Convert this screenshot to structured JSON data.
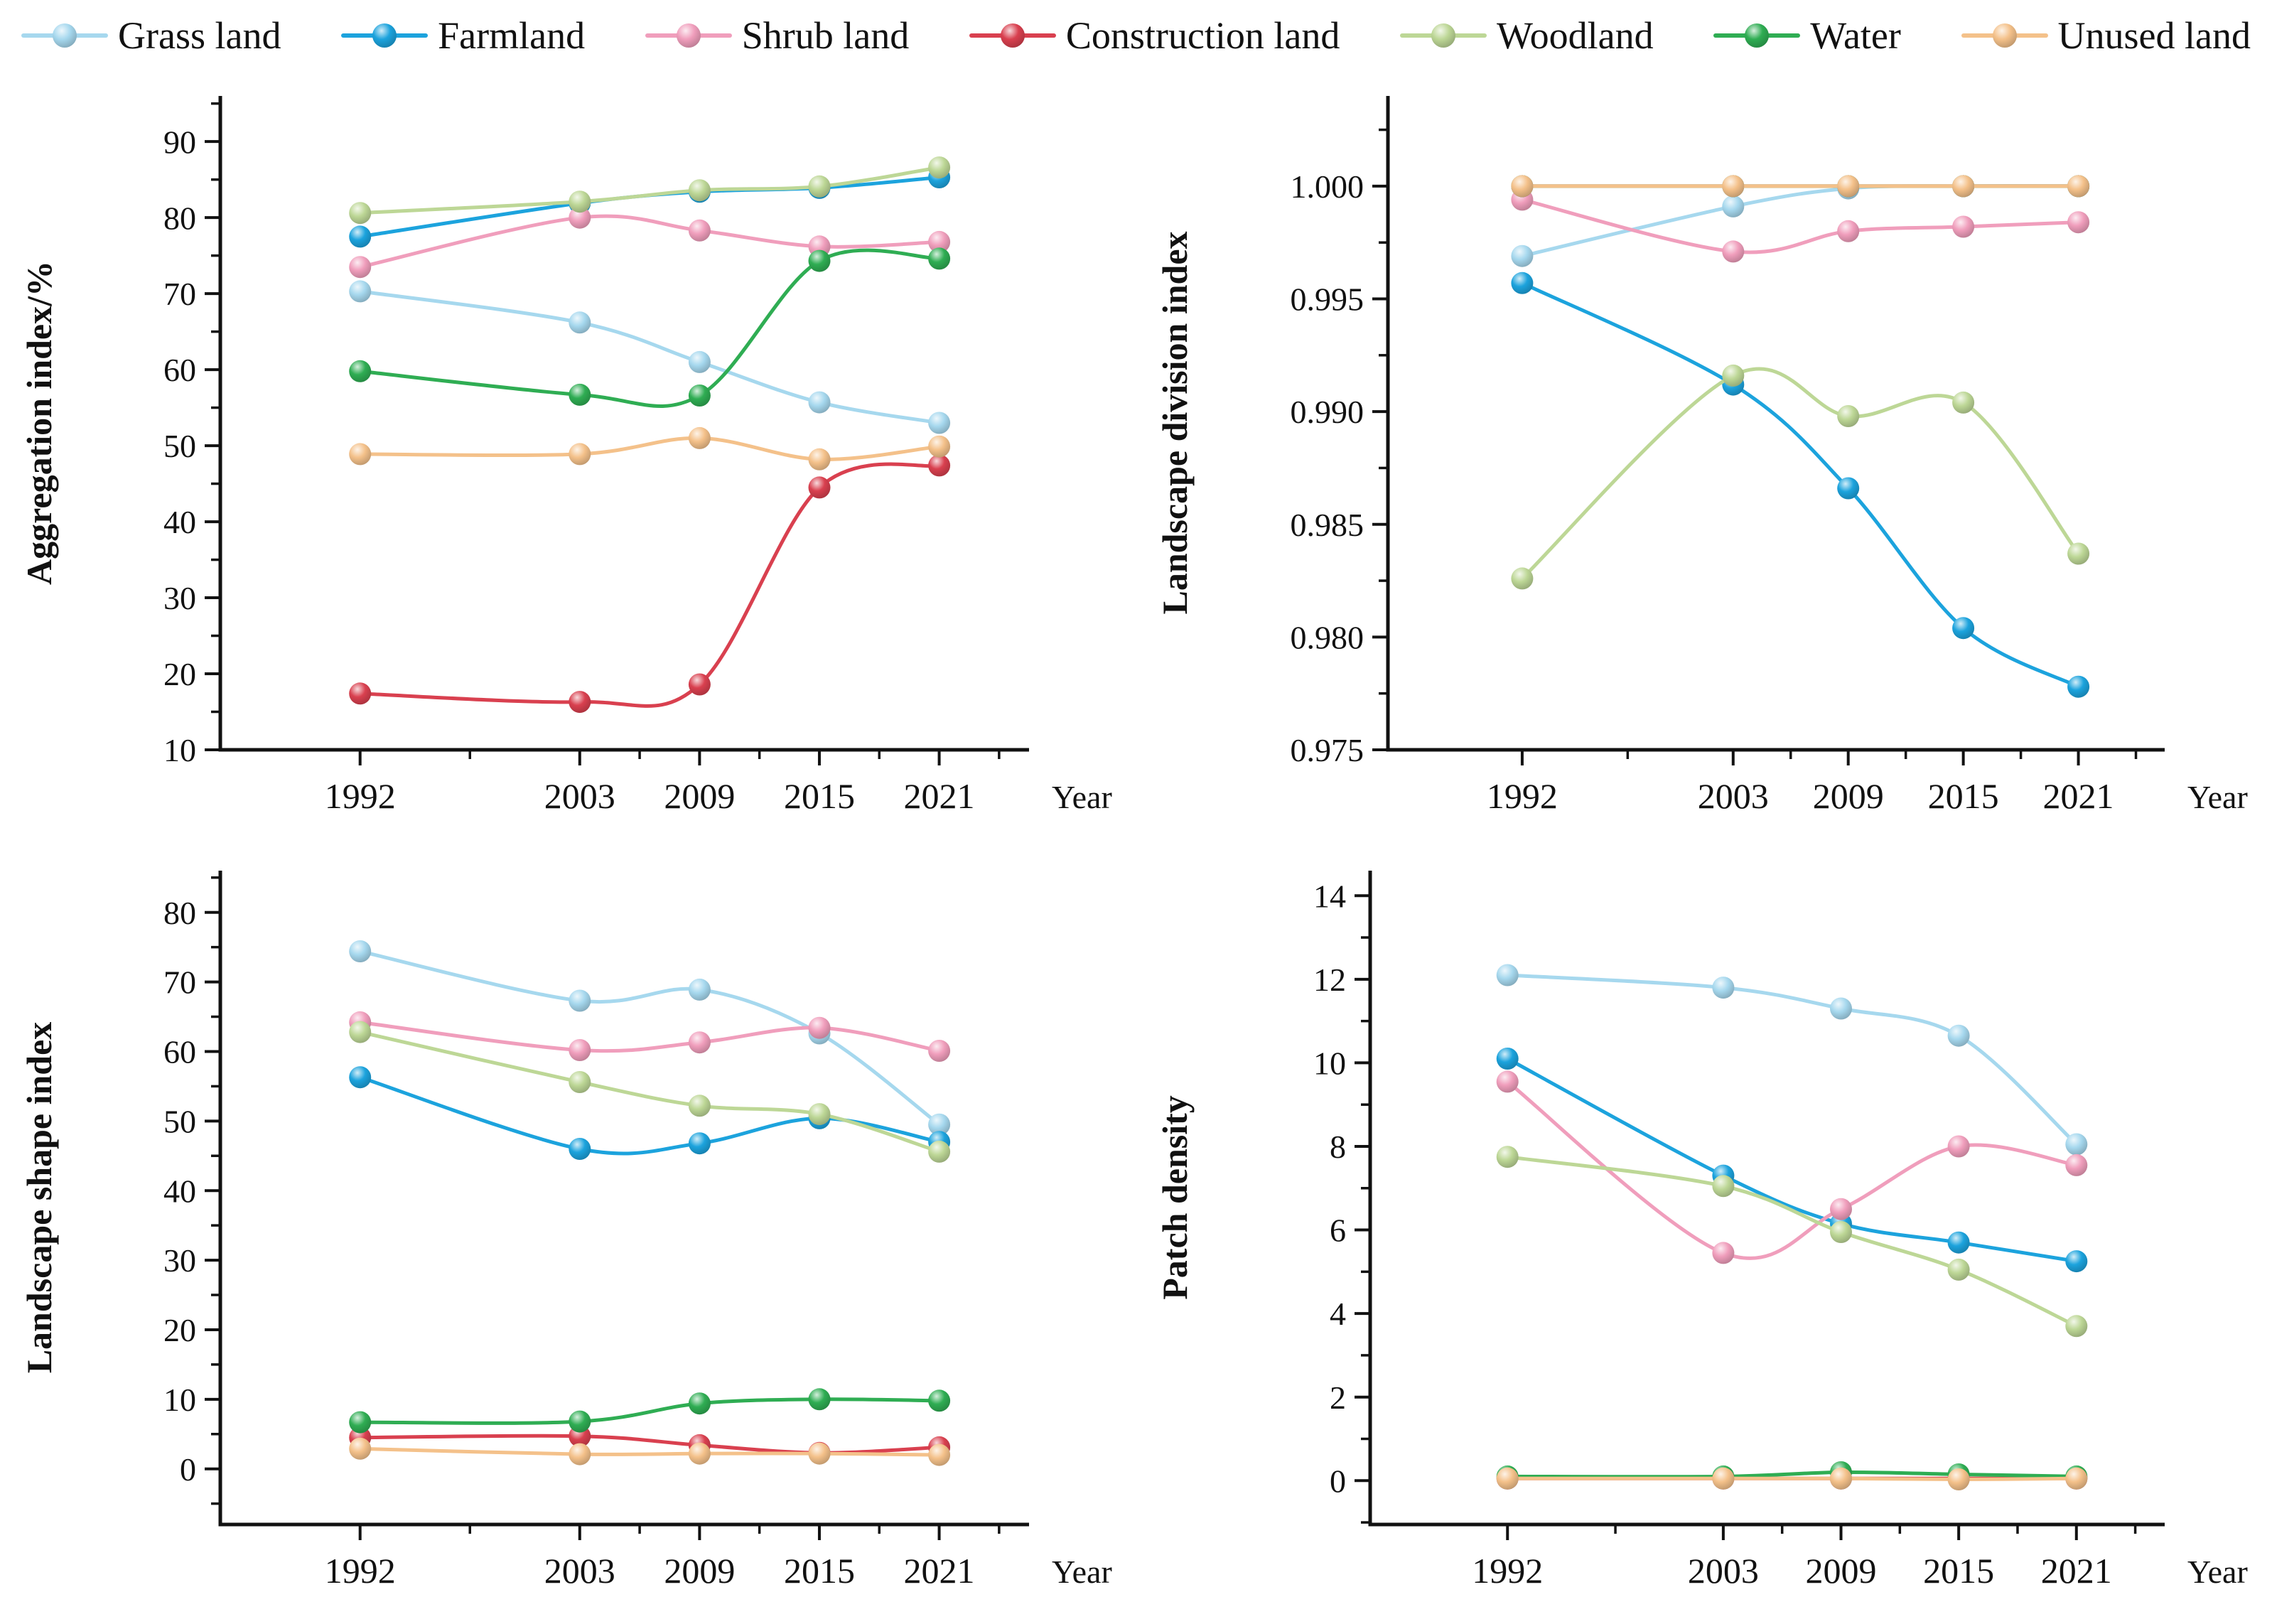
{
  "page": {
    "background": "#ffffff",
    "axis_color": "#111111"
  },
  "legend": {
    "items": [
      {
        "label": "Grass land",
        "color": "#a6d8ee"
      },
      {
        "label": "Farmland",
        "color": "#1ca3dd"
      },
      {
        "label": "Shrub land",
        "color": "#f09ebc"
      },
      {
        "label": "Construction land",
        "color": "#d9404f"
      },
      {
        "label": "Woodland",
        "color": "#bdd796"
      },
      {
        "label": "Water",
        "color": "#2fad53"
      },
      {
        "label": "Unused land",
        "color": "#f4c18a"
      }
    ]
  },
  "chart_data": [
    {
      "type": "line",
      "title": "Aggregation index",
      "ylabel": "Aggregation index/%",
      "xlabel": "Year",
      "x": [
        1992,
        2003,
        2009,
        2015,
        2021
      ],
      "xlim": [
        1985,
        2025.5
      ],
      "xminor": [
        1997.5,
        2006,
        2012,
        2018,
        2024
      ],
      "ylim": [
        10,
        96
      ],
      "ytick_min": 10,
      "ytick_max": 90,
      "ytick_step": 10,
      "yminor_step": 5,
      "ytick_decimals": 0,
      "grid": false,
      "legend_position": "top",
      "series": [
        {
          "name": "Grass land",
          "values": [
            70.3,
            66.2,
            61.0,
            55.7,
            53.0
          ]
        },
        {
          "name": "Farmland",
          "values": [
            77.5,
            81.9,
            83.4,
            83.9,
            85.3
          ]
        },
        {
          "name": "Shrub land",
          "values": [
            73.5,
            80.0,
            78.3,
            76.2,
            76.8
          ]
        },
        {
          "name": "Construction land",
          "values": [
            17.4,
            16.3,
            18.6,
            44.5,
            47.4
          ]
        },
        {
          "name": "Woodland",
          "values": [
            80.6,
            82.1,
            83.6,
            84.1,
            86.6
          ]
        },
        {
          "name": "Water",
          "values": [
            59.8,
            56.7,
            56.6,
            74.3,
            74.6
          ]
        },
        {
          "name": "Unused land",
          "values": [
            48.9,
            48.9,
            51.0,
            48.2,
            49.9
          ]
        }
      ]
    },
    {
      "type": "line",
      "title": "Landscape division index",
      "ylabel": "Landscape division index",
      "xlabel": "Year",
      "x": [
        1992,
        2003,
        2009,
        2015,
        2021
      ],
      "xlim": [
        1985,
        2025.5
      ],
      "xminor": [
        1997.5,
        2006,
        2012,
        2018,
        2024
      ],
      "ylim": [
        0.975,
        1.004
      ],
      "ytick_min": 0.975,
      "ytick_max": 1.0,
      "ytick_step": 0.005,
      "yminor_step": 0.0025,
      "ytick_decimals": 3,
      "grid": false,
      "legend_position": "top",
      "series": [
        {
          "name": "Grass land",
          "values": [
            0.9969,
            0.9991,
            0.9999,
            1.0,
            1.0
          ]
        },
        {
          "name": "Farmland",
          "values": [
            0.9957,
            0.9912,
            0.9866,
            0.9804,
            0.9778
          ]
        },
        {
          "name": "Shrub land",
          "values": [
            0.9994,
            0.9971,
            0.998,
            0.9982,
            0.9984
          ]
        },
        {
          "name": "Construction land",
          "values": [
            1.0,
            1.0,
            1.0,
            1.0,
            1.0
          ]
        },
        {
          "name": "Woodland",
          "values": [
            0.9826,
            0.9916,
            0.9898,
            0.9904,
            0.9837
          ]
        },
        {
          "name": "Water",
          "values": [
            1.0,
            1.0,
            1.0,
            1.0,
            1.0
          ]
        },
        {
          "name": "Unused land",
          "values": [
            1.0,
            1.0,
            1.0,
            1.0,
            1.0
          ]
        }
      ]
    },
    {
      "type": "line",
      "title": "Landscape shape index",
      "ylabel": "Landscape shape index",
      "xlabel": "Year",
      "x": [
        1992,
        2003,
        2009,
        2015,
        2021
      ],
      "xlim": [
        1985,
        2025.5
      ],
      "xminor": [
        1997.5,
        2006,
        2012,
        2018,
        2024
      ],
      "ylim": [
        -8,
        86
      ],
      "ytick_min": 0,
      "ytick_max": 80,
      "ytick_step": 10,
      "yminor_step": 5,
      "ytick_decimals": 0,
      "grid": false,
      "legend_position": "top",
      "series": [
        {
          "name": "Grass land",
          "values": [
            74.4,
            67.3,
            68.9,
            62.6,
            49.5
          ]
        },
        {
          "name": "Farmland",
          "values": [
            56.3,
            46.0,
            46.8,
            50.4,
            47.0
          ]
        },
        {
          "name": "Shrub land",
          "values": [
            64.2,
            60.2,
            61.3,
            63.4,
            60.1
          ]
        },
        {
          "name": "Construction land",
          "values": [
            4.5,
            4.7,
            3.4,
            2.3,
            3.1
          ]
        },
        {
          "name": "Woodland",
          "values": [
            62.8,
            55.6,
            52.2,
            51.0,
            45.6
          ]
        },
        {
          "name": "Water",
          "values": [
            6.7,
            6.8,
            9.4,
            10.0,
            9.8
          ]
        },
        {
          "name": "Unused land",
          "values": [
            2.9,
            2.1,
            2.2,
            2.2,
            2.0
          ]
        }
      ]
    },
    {
      "type": "line",
      "title": "Patch density",
      "ylabel": "Patch density",
      "xlabel": "Year",
      "x": [
        1992,
        2003,
        2009,
        2015,
        2021
      ],
      "xlim": [
        1985,
        2025.5
      ],
      "xminor": [
        1997.5,
        2006,
        2012,
        2018,
        2024
      ],
      "ylim": [
        -1.05,
        14.6
      ],
      "ytick_min": 0,
      "ytick_max": 14,
      "ytick_step": 2,
      "yminor_step": 1,
      "ytick_decimals": 0,
      "grid": false,
      "legend_position": "top",
      "series": [
        {
          "name": "Grass land",
          "values": [
            12.1,
            11.8,
            11.3,
            10.65,
            8.05
          ]
        },
        {
          "name": "Farmland",
          "values": [
            10.1,
            7.3,
            6.15,
            5.7,
            5.25
          ]
        },
        {
          "name": "Shrub land",
          "values": [
            9.55,
            5.45,
            6.5,
            8.0,
            7.55
          ]
        },
        {
          "name": "Construction land",
          "values": [
            0.05,
            0.05,
            0.05,
            0.05,
            0.05
          ]
        },
        {
          "name": "Woodland",
          "values": [
            7.75,
            7.05,
            5.95,
            5.05,
            3.7
          ]
        },
        {
          "name": "Water",
          "values": [
            0.1,
            0.1,
            0.2,
            0.15,
            0.1
          ]
        },
        {
          "name": "Unused land",
          "values": [
            0.05,
            0.05,
            0.05,
            0.03,
            0.05
          ]
        }
      ]
    }
  ]
}
